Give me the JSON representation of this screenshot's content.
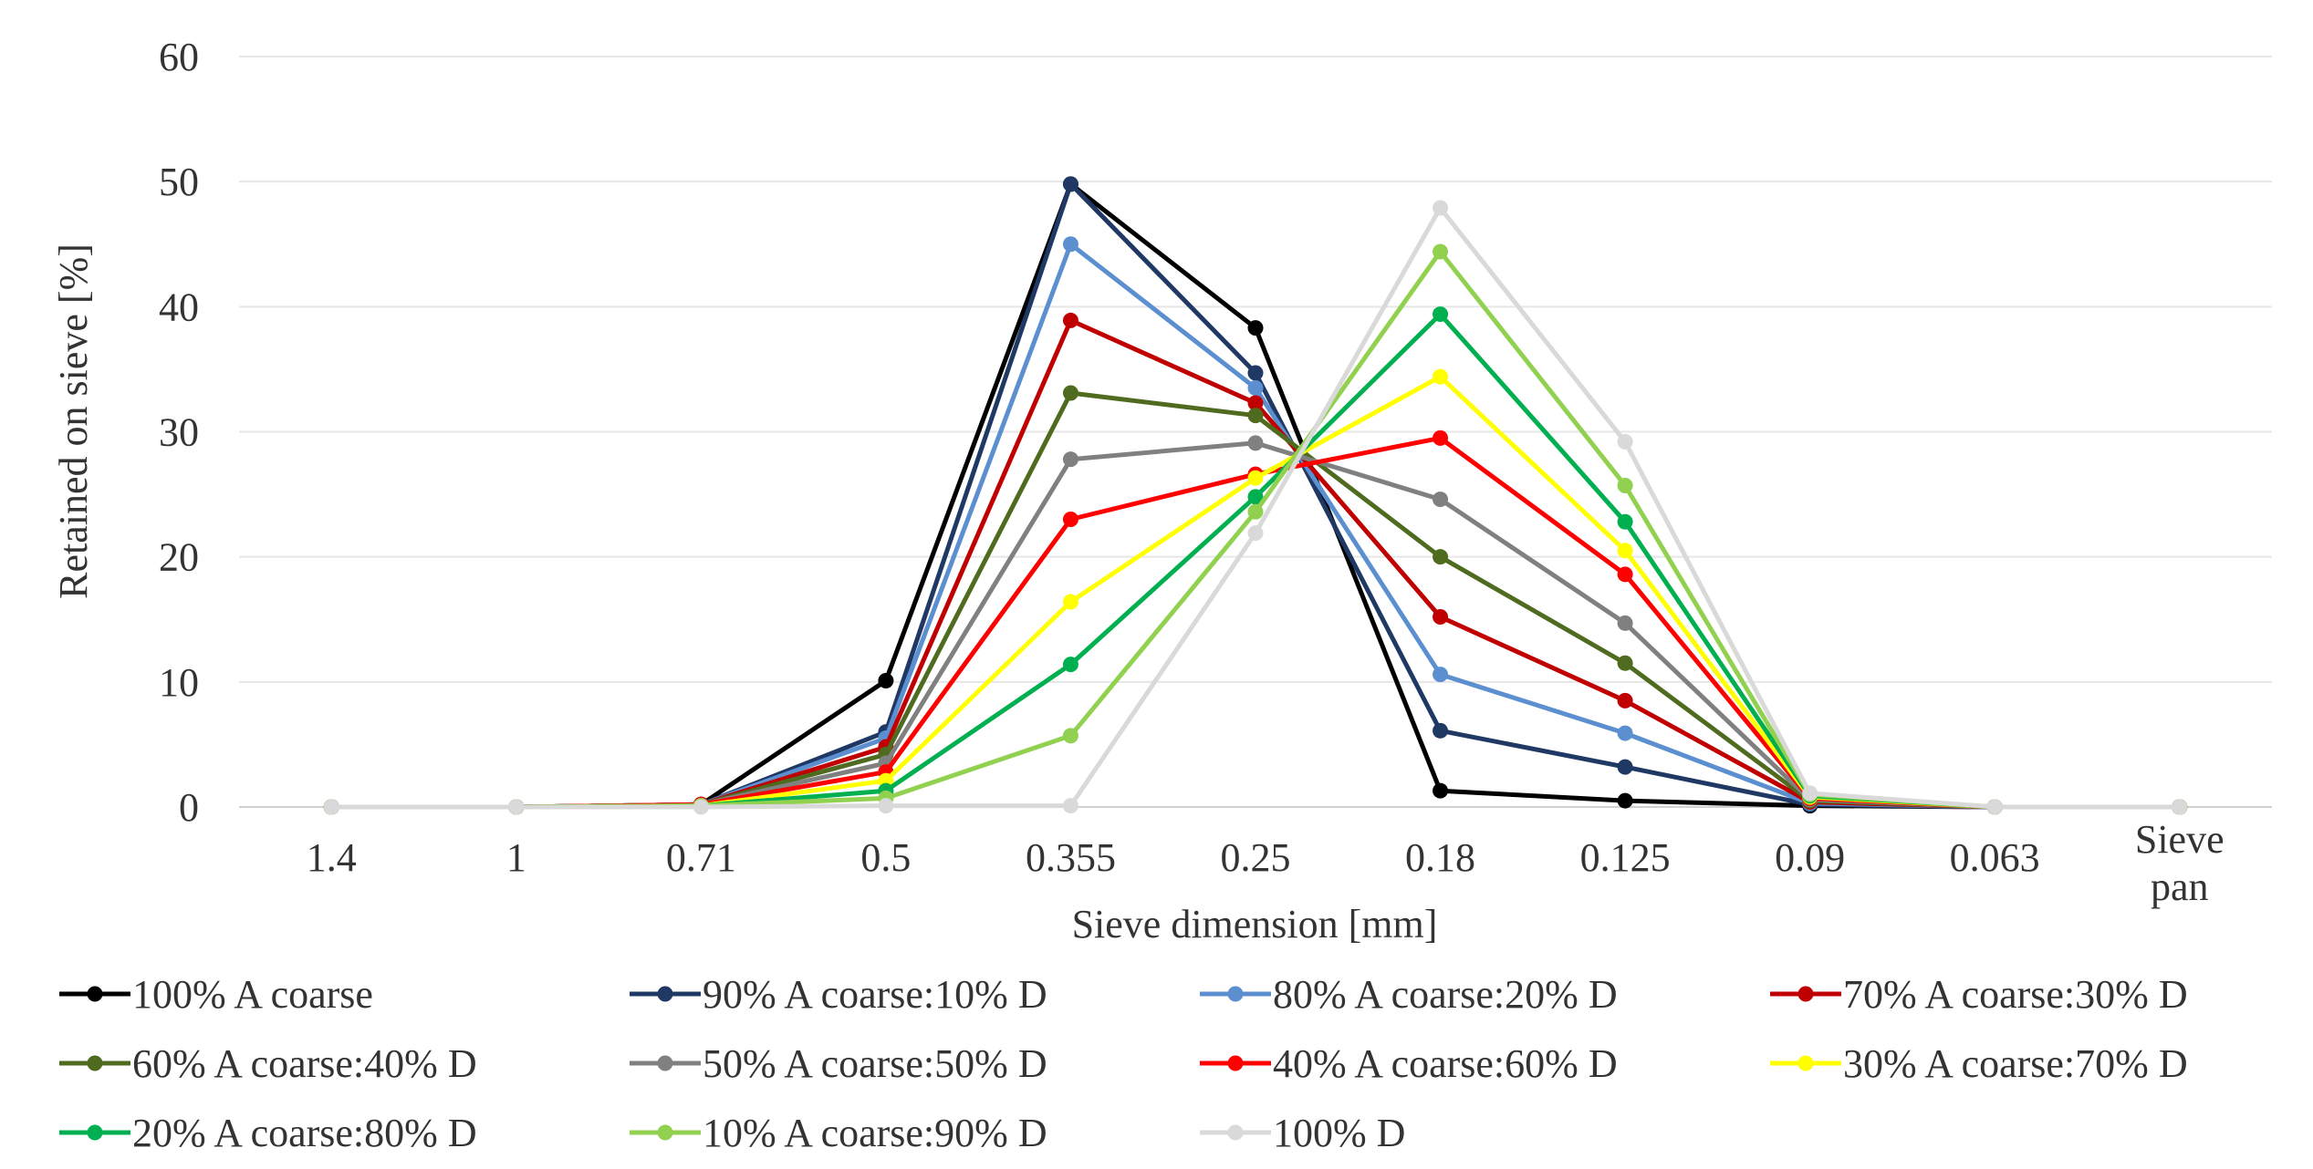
{
  "chart_data": {
    "type": "line",
    "title": "",
    "xlabel": "Sieve dimension [mm]",
    "ylabel": "Retained on sieve [%]",
    "categories": [
      "1.4",
      "1",
      "0.71",
      "0.5",
      "0.355",
      "0.25",
      "0.18",
      "0.125",
      "0.09",
      "0.063",
      "Sieve pan"
    ],
    "ylim": [
      0,
      60
    ],
    "yticks": [
      "0",
      "10",
      "20",
      "30",
      "40",
      "50",
      "60"
    ],
    "grid": true,
    "legend_position": "bottom",
    "series": [
      {
        "name": "100% A coarse",
        "color": "#000000",
        "values": [
          0,
          0,
          0.2,
          10.1,
          49.8,
          38.3,
          1.3,
          0.5,
          0.1,
          0,
          0
        ]
      },
      {
        "name": "90% A coarse:10% D",
        "color": "#1F3864",
        "values": [
          0,
          0,
          0.2,
          6,
          49.8,
          34.7,
          6.1,
          3.2,
          0.2,
          0,
          0
        ]
      },
      {
        "name": "80% A coarse:20% D",
        "color": "#5B8FD0",
        "values": [
          0,
          0,
          0.2,
          5.5,
          45,
          33.5,
          10.6,
          5.9,
          0.3,
          0,
          0
        ]
      },
      {
        "name": "70% A coarse:30% D",
        "color": "#C00000",
        "values": [
          0,
          0,
          0.2,
          4.8,
          38.9,
          32.3,
          15.2,
          8.5,
          0.4,
          0,
          0
        ]
      },
      {
        "name": "60% A coarse:40% D",
        "color": "#4E6B1F",
        "values": [
          0,
          0,
          0.2,
          4.2,
          33.1,
          31.3,
          20,
          11.5,
          0.5,
          0,
          0
        ]
      },
      {
        "name": "50% A coarse:50% D",
        "color": "#808080",
        "values": [
          0,
          0,
          0.2,
          3.5,
          27.8,
          29.1,
          24.6,
          14.7,
          0.6,
          0,
          0
        ]
      },
      {
        "name": "40% A coarse:60% D",
        "color": "#FF0000",
        "values": [
          0,
          0,
          0.2,
          2.8,
          23,
          26.6,
          29.5,
          18.6,
          0.7,
          0,
          0
        ]
      },
      {
        "name": "30% A coarse:70% D",
        "color": "#FFFF00",
        "values": [
          0,
          0,
          0.1,
          2.1,
          16.4,
          26.3,
          34.4,
          20.5,
          0.8,
          0,
          0
        ]
      },
      {
        "name": "20% A coarse:80% D",
        "color": "#00B050",
        "values": [
          0,
          0,
          0.1,
          1.3,
          11.4,
          24.8,
          39.4,
          22.8,
          0.9,
          0,
          0
        ]
      },
      {
        "name": "10% A coarse:90% D",
        "color": "#92D050",
        "values": [
          0,
          0,
          0.1,
          0.7,
          5.7,
          23.6,
          44.4,
          25.7,
          1,
          0,
          0
        ]
      },
      {
        "name": "100% D",
        "color": "#D9D9D9",
        "values": [
          0,
          0,
          0,
          0.1,
          0.1,
          21.9,
          47.9,
          29.2,
          1.1,
          0,
          0
        ]
      }
    ]
  }
}
